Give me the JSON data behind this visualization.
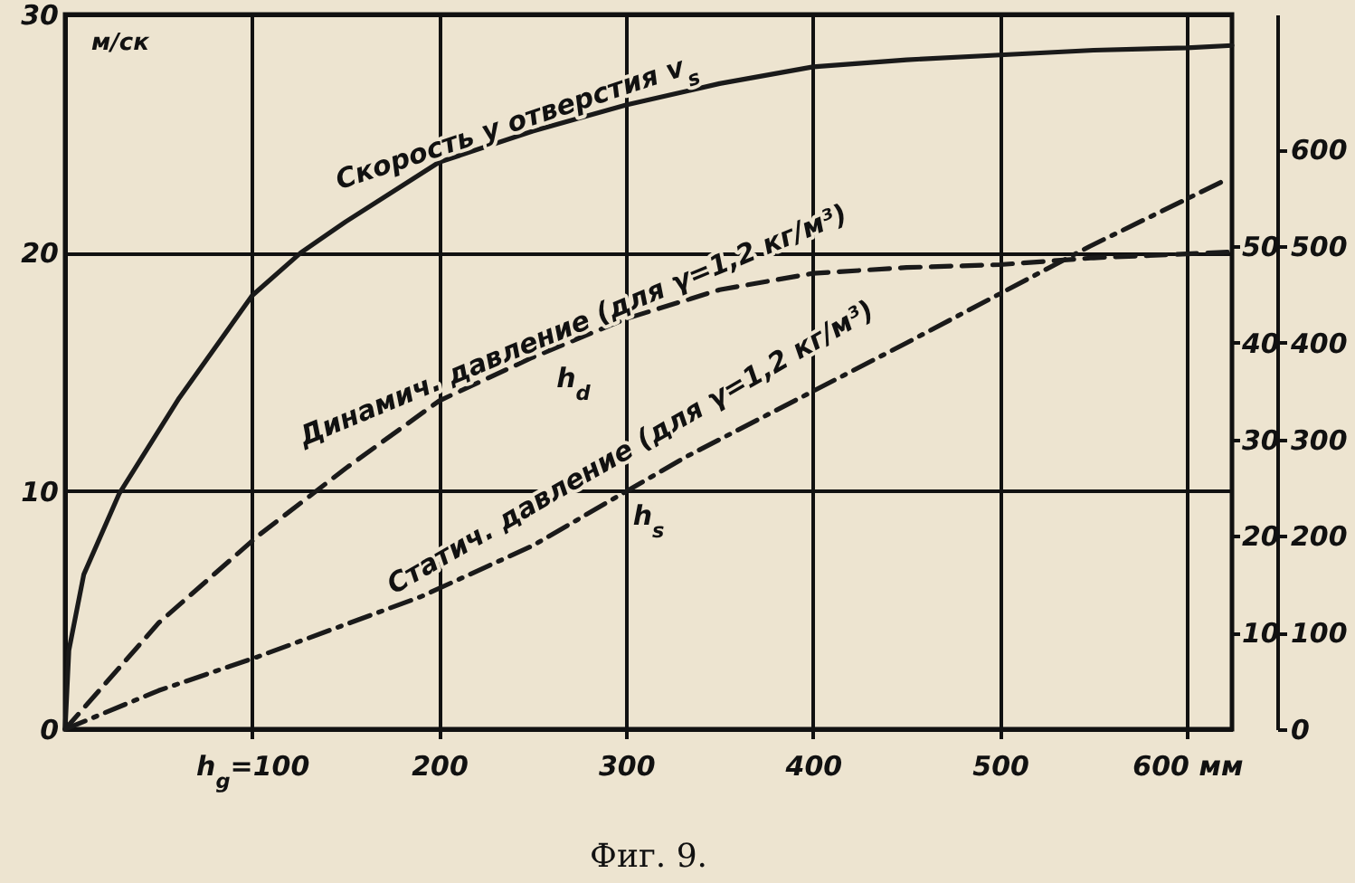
{
  "chart_data": {
    "type": "line",
    "ylabel": "м/ск",
    "xlim": [
      0,
      624
    ],
    "xticks": [
      {
        "value": 100,
        "label": "h$_{g}$=100"
      },
      200,
      300,
      400,
      500,
      {
        "value": 600,
        "label": "600 мм"
      }
    ],
    "ylim": [
      0,
      30
    ],
    "yticks": [
      0,
      10,
      20,
      30
    ],
    "y2lim": [
      0,
      740
    ],
    "y2ticks": [
      0,
      100,
      200,
      300,
      400,
      500,
      600
    ],
    "y3lim": [
      0,
      74
    ],
    "y3ticks": [
      10,
      20,
      30,
      40,
      50
    ],
    "grid": true,
    "series": [
      {
        "name": "Скорость у отверстия v$_{s}$",
        "color": "#1a1a1a",
        "line_style": "solid",
        "x": [
          0,
          2,
          10,
          29,
          61,
          100,
          126,
          150,
          200,
          250,
          300,
          350,
          400,
          450,
          500,
          550,
          600,
          624
        ],
        "values": [
          0,
          3.3,
          6.5,
          9.9,
          13.9,
          18.2,
          20,
          21.3,
          23.8,
          25.1,
          26.2,
          27.1,
          27.8,
          28.1,
          28.3,
          28.5,
          28.6,
          28.7
        ]
      },
      {
        "name": "Динамич. давление (для γ=1,2 кг/м³)",
        "color": "#1a1a1a",
        "line_style": "dashed",
        "axis": "y2",
        "x": [
          0,
          50,
          103,
          150,
          200,
          250,
          300,
          350,
          400,
          450,
          500,
          550,
          622
        ],
        "values": [
          0,
          110,
          200,
          270,
          340,
          385,
          425,
          455,
          472,
          478,
          481,
          488,
          494
        ]
      },
      {
        "name": "Статич. давление (для γ=1,2 кг/м³)",
        "color": "#1a1a1a",
        "line_style": "dashdot",
        "axis": "y2",
        "x": [
          0,
          50,
          103,
          190,
          250,
          332,
          400,
          450,
          500,
          548,
          622
        ],
        "values": [
          0,
          40,
          75,
          137,
          190,
          282,
          350,
          400,
          451,
          500,
          570
        ]
      }
    ],
    "annotations": [
      "h$_{d}$",
      "h$_{s}$",
      "Фиг. 9."
    ]
  }
}
